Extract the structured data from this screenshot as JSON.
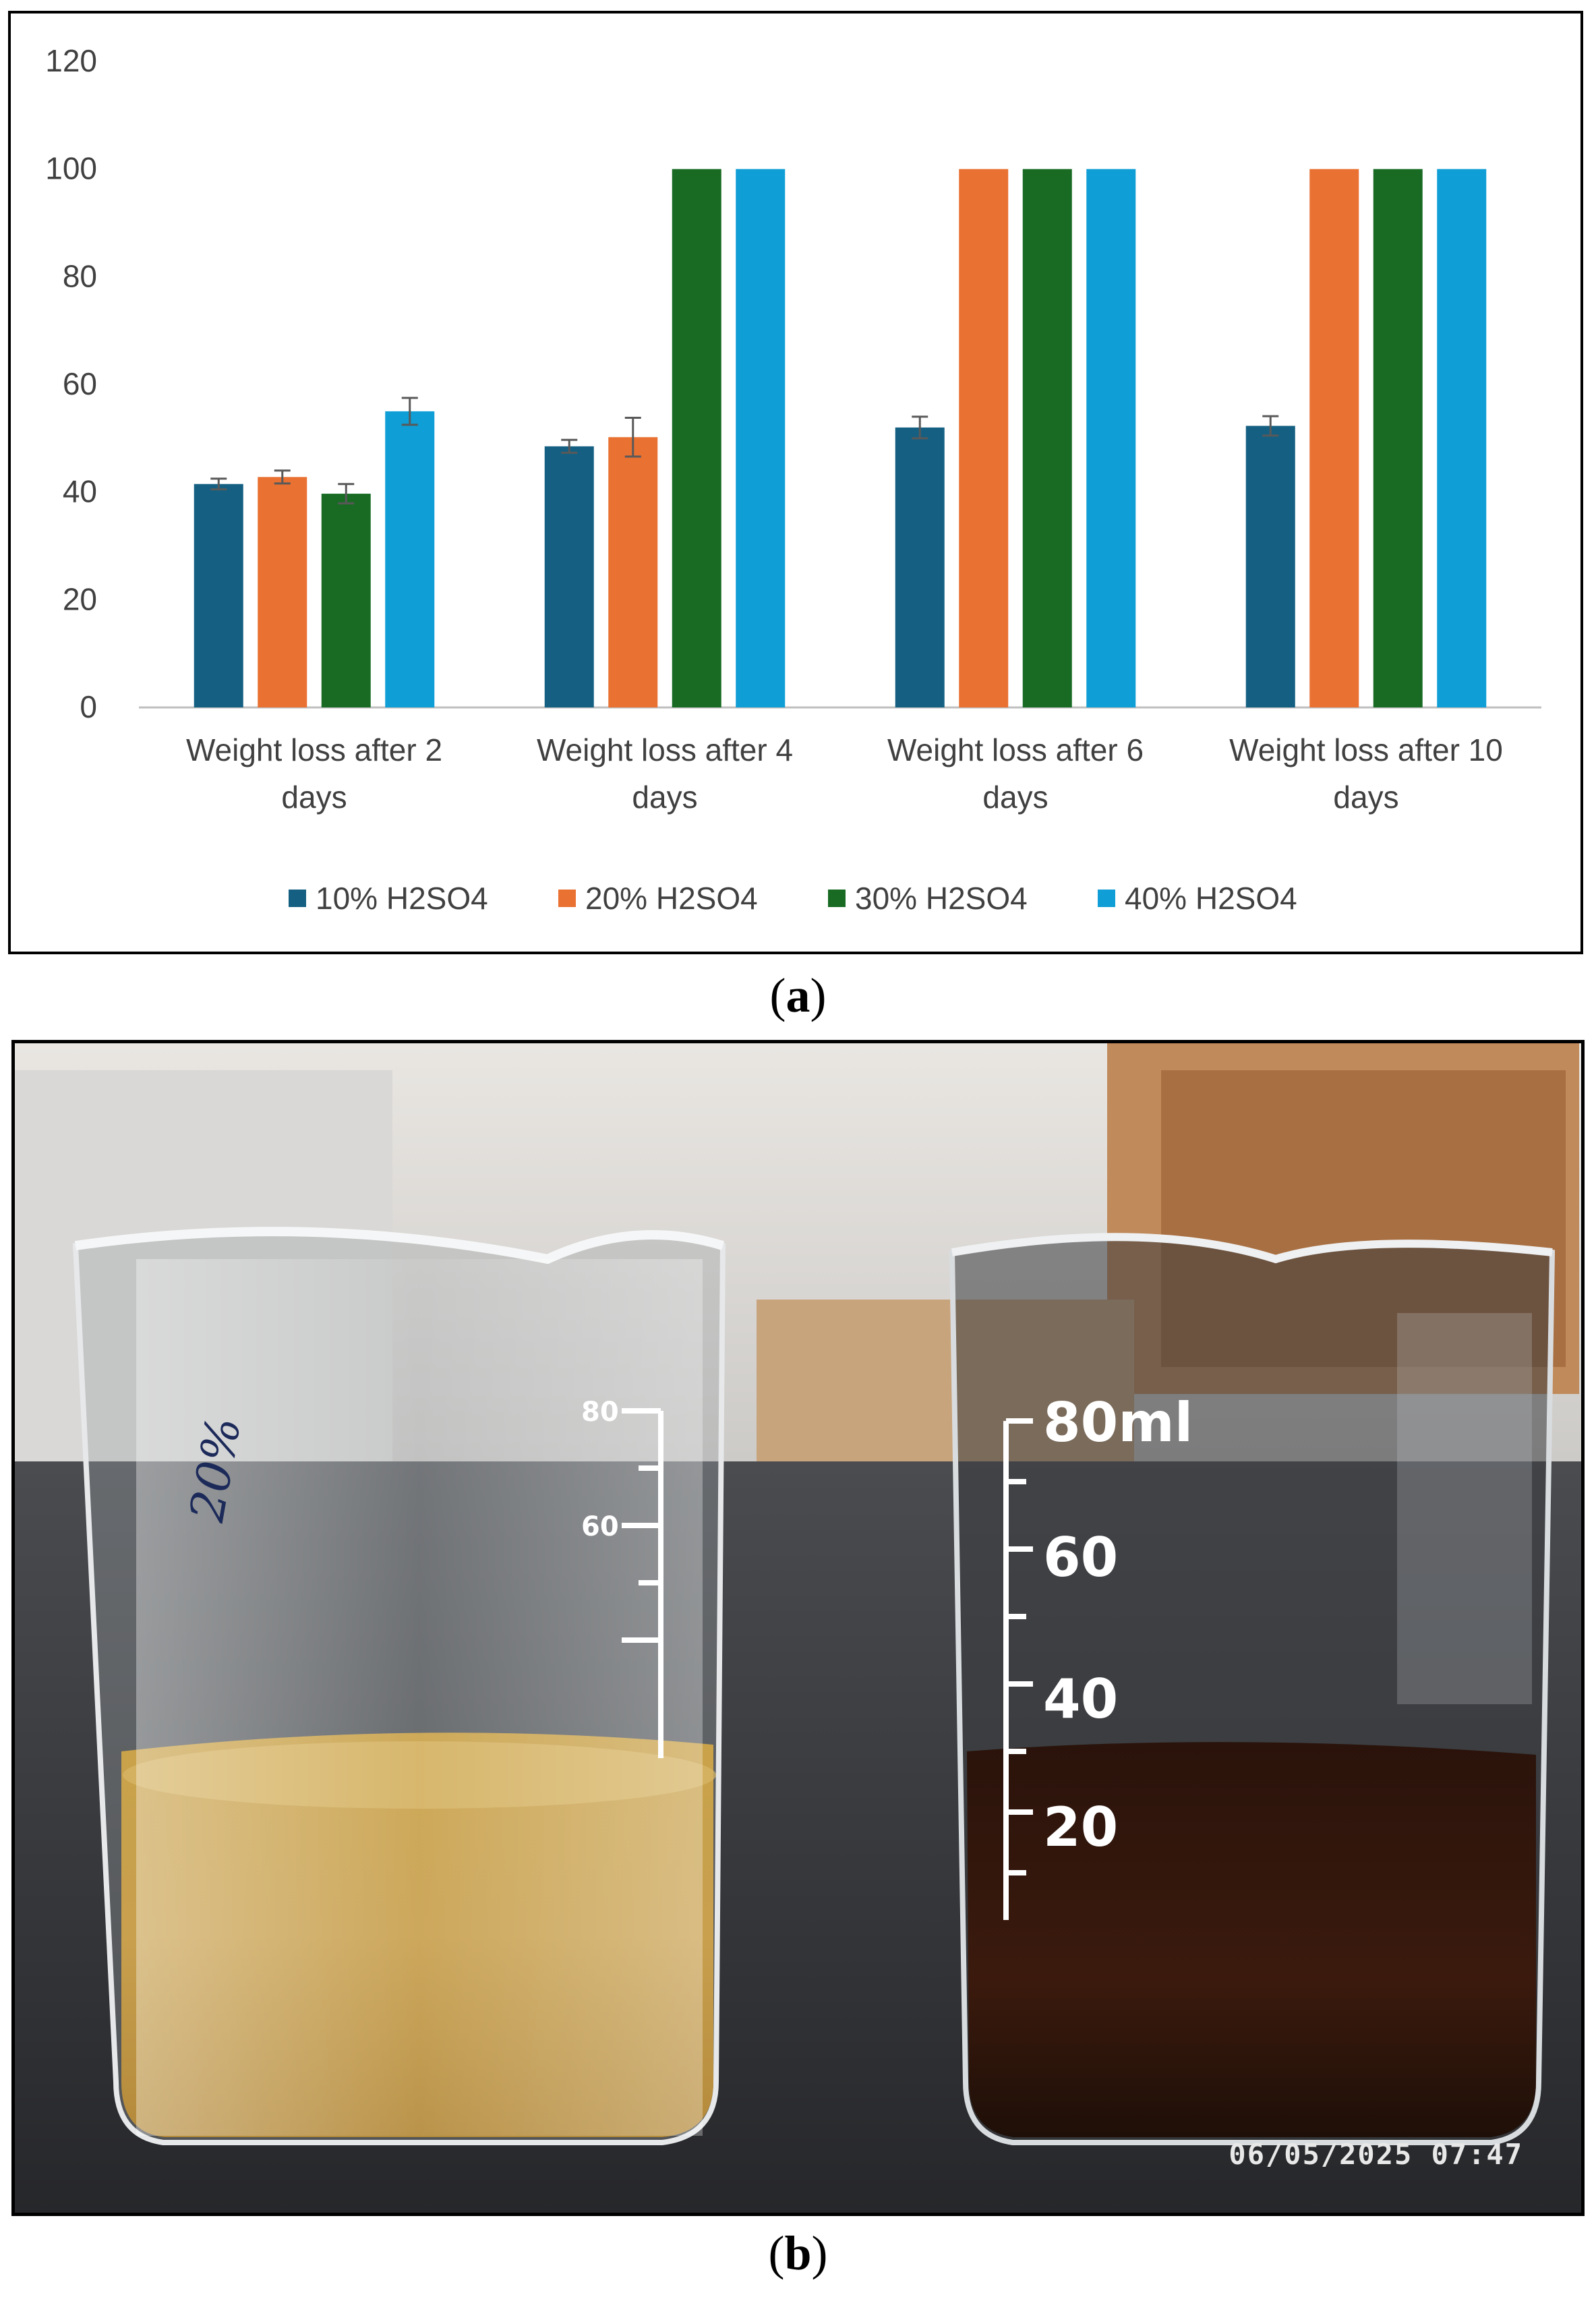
{
  "chart_data": {
    "type": "bar",
    "categories": [
      "Weight loss after 2 days",
      "Weight loss after 4 days",
      "Weight loss after 6 days",
      "Weight loss after 10 days"
    ],
    "category_lines": [
      [
        "Weight loss after 2",
        "days"
      ],
      [
        "Weight loss after 4",
        "days"
      ],
      [
        "Weight loss after 6",
        "days"
      ],
      [
        "Weight loss after 10",
        "days"
      ]
    ],
    "series": [
      {
        "name": "10% H2SO4",
        "color": "#156082",
        "values": [
          41.5,
          48.5,
          52,
          52.3
        ],
        "errors": [
          1.0,
          1.2,
          2.0,
          1.8
        ]
      },
      {
        "name": "20% H2SO4",
        "color": "#e97132",
        "values": [
          42.8,
          50.2,
          100,
          100
        ],
        "errors": [
          1.2,
          3.6,
          0,
          0
        ]
      },
      {
        "name": "30% H2SO4",
        "color": "#196b24",
        "values": [
          39.7,
          100,
          100,
          100
        ],
        "errors": [
          1.8,
          0,
          0,
          0
        ]
      },
      {
        "name": "40% H2SO4",
        "color": "#0f9ed5",
        "values": [
          55,
          100,
          100,
          100
        ],
        "errors": [
          2.5,
          0,
          0,
          0
        ]
      }
    ],
    "ylim": [
      0,
      120
    ],
    "yticks": [
      0,
      20,
      40,
      60,
      80,
      100,
      120
    ],
    "grid": false,
    "legend_position": "bottom",
    "error_color": "#595959"
  },
  "captions": {
    "a": "(a)",
    "b": "(b)"
  },
  "photo": {
    "timestamp": "06/05/2025  07:47",
    "left_beaker_marks": [
      "80",
      "60"
    ],
    "left_beaker_note": "20%",
    "right_beaker_marks": [
      "80ml",
      "60",
      "40",
      "20"
    ]
  }
}
